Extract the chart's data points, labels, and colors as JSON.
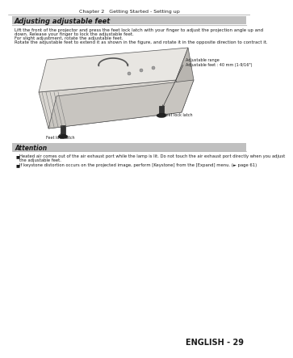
{
  "page_title": "Chapter 2   Getting Started - Setting up",
  "section_title": "Adjusting adjustable feet",
  "body_text_line1": "Lift the front of the projector and press the feet lock latch with your finger to adjust the projection angle up and",
  "body_text_line2": "down. Release your finger to lock the adjustable feet.",
  "body_text_line3": "For slight adjustment, rotate the adjustable feet.",
  "body_text_line4": "Rotate the adjustable feet to extend it as shown in the figure, and rotate it in the opposite direction to contract it.",
  "label_adjustable_range": "Adjustable range",
  "label_adjustable_feet": "Adjustable feet : 40 mm (1-9/16\")",
  "label_feet_lock_latch_left": "Feet lock latch",
  "label_feet_lock_latch_right": "Feet lock latch",
  "attention_title": "Attention",
  "attention_bullet1_line1": "Heated air comes out of the air exhaust port while the lamp is lit. Do not touch the air exhaust port directly when you adjust",
  "attention_bullet1_line2": "the adjustable feet.",
  "attention_bullet2": "If keystone distortion occurs on the projected image, perform [Keystone] from the [Expand] menu. (► page 61)",
  "footer": "ENGLISH - 29",
  "bg_color": "#ffffff",
  "text_color": "#1a1a1a",
  "gray_color": "#888888",
  "section_bg_color": "#c0c0c0",
  "attention_bg_color": "#c0c0c0",
  "proj_body_color": "#d8d5d0",
  "proj_top_color": "#e8e6e2",
  "proj_right_color": "#b8b5b0",
  "proj_dark_color": "#555555",
  "foot_color": "#333333"
}
